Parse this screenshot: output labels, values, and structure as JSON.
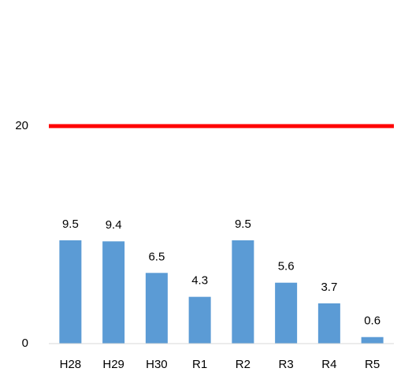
{
  "chart_data": {
    "type": "bar",
    "categories": [
      "H28",
      "H29",
      "H30",
      "R1",
      "R2",
      "R3",
      "R4",
      "R5"
    ],
    "values": [
      9.5,
      9.4,
      6.5,
      4.3,
      9.5,
      5.6,
      3.7,
      0.6
    ],
    "color": "#5b9bd5",
    "ylim": [
      0,
      20
    ],
    "yticks": [
      0,
      20
    ],
    "grid": false,
    "threshold": {
      "value": 20,
      "color": "#ff0000"
    }
  }
}
